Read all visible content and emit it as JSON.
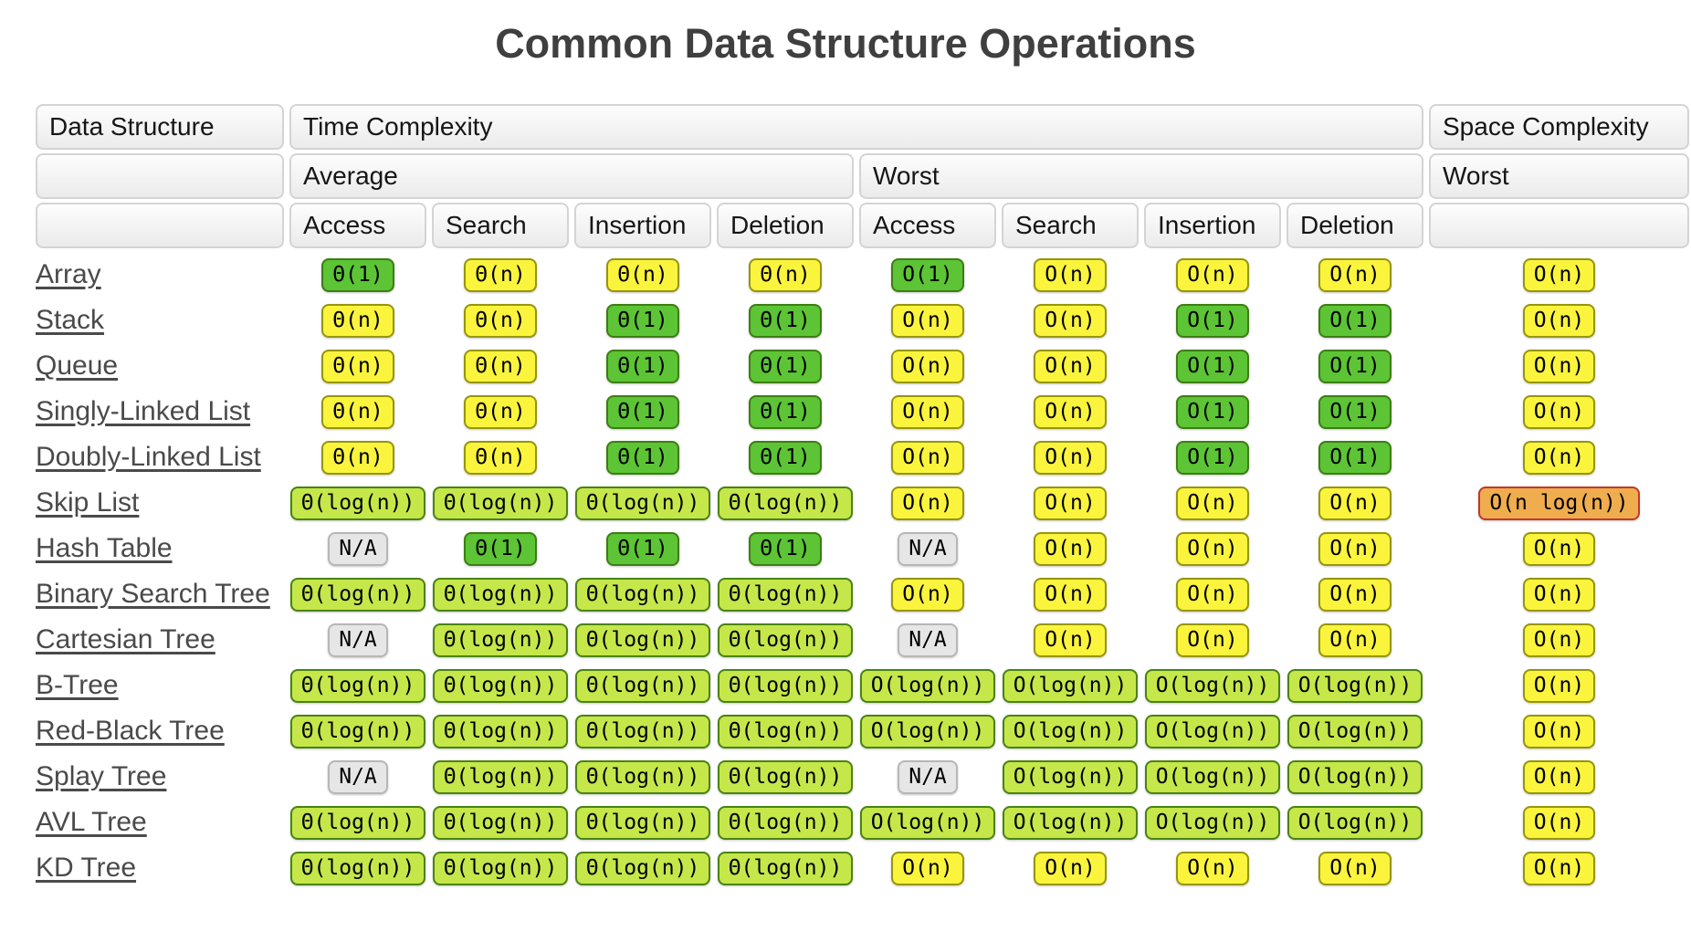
{
  "title": "Common Data Structure Operations",
  "colors": {
    "excellent": {
      "bg": "#5CC435",
      "border": "#3C7E12"
    },
    "good": {
      "bg": "#C5E74A",
      "border": "#4A8313"
    },
    "fair": {
      "bg": "#FBF43D",
      "border": "#96960A"
    },
    "bad": {
      "bg": "#EFAD4E",
      "border": "#C2392B"
    },
    "na": {
      "bg": "#E6E6E6",
      "border": "#B7B7B7"
    }
  },
  "table": {
    "headers": {
      "data_structure": "Data Structure",
      "time_complexity": "Time Complexity",
      "space_complexity": "Space Complexity",
      "average": "Average",
      "worst": "Worst",
      "space_worst": "Worst",
      "ops": [
        "Access",
        "Search",
        "Insertion",
        "Deletion"
      ]
    },
    "rows": [
      {
        "name": "Array",
        "slug": "array",
        "avg": [
          {
            "t": "Θ(1)",
            "r": "excellent"
          },
          {
            "t": "Θ(n)",
            "r": "fair"
          },
          {
            "t": "Θ(n)",
            "r": "fair"
          },
          {
            "t": "Θ(n)",
            "r": "fair"
          }
        ],
        "worst": [
          {
            "t": "O(1)",
            "r": "excellent"
          },
          {
            "t": "O(n)",
            "r": "fair"
          },
          {
            "t": "O(n)",
            "r": "fair"
          },
          {
            "t": "O(n)",
            "r": "fair"
          }
        ],
        "space": {
          "t": "O(n)",
          "r": "fair"
        }
      },
      {
        "name": "Stack",
        "slug": "stack",
        "avg": [
          {
            "t": "Θ(n)",
            "r": "fair"
          },
          {
            "t": "Θ(n)",
            "r": "fair"
          },
          {
            "t": "Θ(1)",
            "r": "excellent"
          },
          {
            "t": "Θ(1)",
            "r": "excellent"
          }
        ],
        "worst": [
          {
            "t": "O(n)",
            "r": "fair"
          },
          {
            "t": "O(n)",
            "r": "fair"
          },
          {
            "t": "O(1)",
            "r": "excellent"
          },
          {
            "t": "O(1)",
            "r": "excellent"
          }
        ],
        "space": {
          "t": "O(n)",
          "r": "fair"
        }
      },
      {
        "name": "Queue",
        "slug": "queue",
        "avg": [
          {
            "t": "Θ(n)",
            "r": "fair"
          },
          {
            "t": "Θ(n)",
            "r": "fair"
          },
          {
            "t": "Θ(1)",
            "r": "excellent"
          },
          {
            "t": "Θ(1)",
            "r": "excellent"
          }
        ],
        "worst": [
          {
            "t": "O(n)",
            "r": "fair"
          },
          {
            "t": "O(n)",
            "r": "fair"
          },
          {
            "t": "O(1)",
            "r": "excellent"
          },
          {
            "t": "O(1)",
            "r": "excellent"
          }
        ],
        "space": {
          "t": "O(n)",
          "r": "fair"
        }
      },
      {
        "name": "Singly-Linked List",
        "slug": "singly-linked-list",
        "avg": [
          {
            "t": "Θ(n)",
            "r": "fair"
          },
          {
            "t": "Θ(n)",
            "r": "fair"
          },
          {
            "t": "Θ(1)",
            "r": "excellent"
          },
          {
            "t": "Θ(1)",
            "r": "excellent"
          }
        ],
        "worst": [
          {
            "t": "O(n)",
            "r": "fair"
          },
          {
            "t": "O(n)",
            "r": "fair"
          },
          {
            "t": "O(1)",
            "r": "excellent"
          },
          {
            "t": "O(1)",
            "r": "excellent"
          }
        ],
        "space": {
          "t": "O(n)",
          "r": "fair"
        }
      },
      {
        "name": "Doubly-Linked List",
        "slug": "doubly-linked-list",
        "avg": [
          {
            "t": "Θ(n)",
            "r": "fair"
          },
          {
            "t": "Θ(n)",
            "r": "fair"
          },
          {
            "t": "Θ(1)",
            "r": "excellent"
          },
          {
            "t": "Θ(1)",
            "r": "excellent"
          }
        ],
        "worst": [
          {
            "t": "O(n)",
            "r": "fair"
          },
          {
            "t": "O(n)",
            "r": "fair"
          },
          {
            "t": "O(1)",
            "r": "excellent"
          },
          {
            "t": "O(1)",
            "r": "excellent"
          }
        ],
        "space": {
          "t": "O(n)",
          "r": "fair"
        }
      },
      {
        "name": "Skip List",
        "slug": "skip-list",
        "avg": [
          {
            "t": "Θ(log(n))",
            "r": "good"
          },
          {
            "t": "Θ(log(n))",
            "r": "good"
          },
          {
            "t": "Θ(log(n))",
            "r": "good"
          },
          {
            "t": "Θ(log(n))",
            "r": "good"
          }
        ],
        "worst": [
          {
            "t": "O(n)",
            "r": "fair"
          },
          {
            "t": "O(n)",
            "r": "fair"
          },
          {
            "t": "O(n)",
            "r": "fair"
          },
          {
            "t": "O(n)",
            "r": "fair"
          }
        ],
        "space": {
          "t": "O(n log(n))",
          "r": "bad"
        }
      },
      {
        "name": "Hash Table",
        "slug": "hash-table",
        "avg": [
          {
            "t": "N/A",
            "r": "na"
          },
          {
            "t": "Θ(1)",
            "r": "excellent"
          },
          {
            "t": "Θ(1)",
            "r": "excellent"
          },
          {
            "t": "Θ(1)",
            "r": "excellent"
          }
        ],
        "worst": [
          {
            "t": "N/A",
            "r": "na"
          },
          {
            "t": "O(n)",
            "r": "fair"
          },
          {
            "t": "O(n)",
            "r": "fair"
          },
          {
            "t": "O(n)",
            "r": "fair"
          }
        ],
        "space": {
          "t": "O(n)",
          "r": "fair"
        }
      },
      {
        "name": "Binary Search Tree",
        "slug": "binary-search-tree",
        "avg": [
          {
            "t": "Θ(log(n))",
            "r": "good"
          },
          {
            "t": "Θ(log(n))",
            "r": "good"
          },
          {
            "t": "Θ(log(n))",
            "r": "good"
          },
          {
            "t": "Θ(log(n))",
            "r": "good"
          }
        ],
        "worst": [
          {
            "t": "O(n)",
            "r": "fair"
          },
          {
            "t": "O(n)",
            "r": "fair"
          },
          {
            "t": "O(n)",
            "r": "fair"
          },
          {
            "t": "O(n)",
            "r": "fair"
          }
        ],
        "space": {
          "t": "O(n)",
          "r": "fair"
        }
      },
      {
        "name": "Cartesian Tree",
        "slug": "cartesian-tree",
        "avg": [
          {
            "t": "N/A",
            "r": "na"
          },
          {
            "t": "Θ(log(n))",
            "r": "good"
          },
          {
            "t": "Θ(log(n))",
            "r": "good"
          },
          {
            "t": "Θ(log(n))",
            "r": "good"
          }
        ],
        "worst": [
          {
            "t": "N/A",
            "r": "na"
          },
          {
            "t": "O(n)",
            "r": "fair"
          },
          {
            "t": "O(n)",
            "r": "fair"
          },
          {
            "t": "O(n)",
            "r": "fair"
          }
        ],
        "space": {
          "t": "O(n)",
          "r": "fair"
        }
      },
      {
        "name": "B-Tree",
        "slug": "b-tree",
        "avg": [
          {
            "t": "Θ(log(n))",
            "r": "good"
          },
          {
            "t": "Θ(log(n))",
            "r": "good"
          },
          {
            "t": "Θ(log(n))",
            "r": "good"
          },
          {
            "t": "Θ(log(n))",
            "r": "good"
          }
        ],
        "worst": [
          {
            "t": "O(log(n))",
            "r": "good"
          },
          {
            "t": "O(log(n))",
            "r": "good"
          },
          {
            "t": "O(log(n))",
            "r": "good"
          },
          {
            "t": "O(log(n))",
            "r": "good"
          }
        ],
        "space": {
          "t": "O(n)",
          "r": "fair"
        }
      },
      {
        "name": "Red-Black Tree",
        "slug": "red-black-tree",
        "avg": [
          {
            "t": "Θ(log(n))",
            "r": "good"
          },
          {
            "t": "Θ(log(n))",
            "r": "good"
          },
          {
            "t": "Θ(log(n))",
            "r": "good"
          },
          {
            "t": "Θ(log(n))",
            "r": "good"
          }
        ],
        "worst": [
          {
            "t": "O(log(n))",
            "r": "good"
          },
          {
            "t": "O(log(n))",
            "r": "good"
          },
          {
            "t": "O(log(n))",
            "r": "good"
          },
          {
            "t": "O(log(n))",
            "r": "good"
          }
        ],
        "space": {
          "t": "O(n)",
          "r": "fair"
        }
      },
      {
        "name": "Splay Tree",
        "slug": "splay-tree",
        "avg": [
          {
            "t": "N/A",
            "r": "na"
          },
          {
            "t": "Θ(log(n))",
            "r": "good"
          },
          {
            "t": "Θ(log(n))",
            "r": "good"
          },
          {
            "t": "Θ(log(n))",
            "r": "good"
          }
        ],
        "worst": [
          {
            "t": "N/A",
            "r": "na"
          },
          {
            "t": "O(log(n))",
            "r": "good"
          },
          {
            "t": "O(log(n))",
            "r": "good"
          },
          {
            "t": "O(log(n))",
            "r": "good"
          }
        ],
        "space": {
          "t": "O(n)",
          "r": "fair"
        }
      },
      {
        "name": "AVL Tree",
        "slug": "avl-tree",
        "avg": [
          {
            "t": "Θ(log(n))",
            "r": "good"
          },
          {
            "t": "Θ(log(n))",
            "r": "good"
          },
          {
            "t": "Θ(log(n))",
            "r": "good"
          },
          {
            "t": "Θ(log(n))",
            "r": "good"
          }
        ],
        "worst": [
          {
            "t": "O(log(n))",
            "r": "good"
          },
          {
            "t": "O(log(n))",
            "r": "good"
          },
          {
            "t": "O(log(n))",
            "r": "good"
          },
          {
            "t": "O(log(n))",
            "r": "good"
          }
        ],
        "space": {
          "t": "O(n)",
          "r": "fair"
        }
      },
      {
        "name": "KD Tree",
        "slug": "kd-tree",
        "avg": [
          {
            "t": "Θ(log(n))",
            "r": "good"
          },
          {
            "t": "Θ(log(n))",
            "r": "good"
          },
          {
            "t": "Θ(log(n))",
            "r": "good"
          },
          {
            "t": "Θ(log(n))",
            "r": "good"
          }
        ],
        "worst": [
          {
            "t": "O(n)",
            "r": "fair"
          },
          {
            "t": "O(n)",
            "r": "fair"
          },
          {
            "t": "O(n)",
            "r": "fair"
          },
          {
            "t": "O(n)",
            "r": "fair"
          }
        ],
        "space": {
          "t": "O(n)",
          "r": "fair"
        }
      }
    ]
  }
}
